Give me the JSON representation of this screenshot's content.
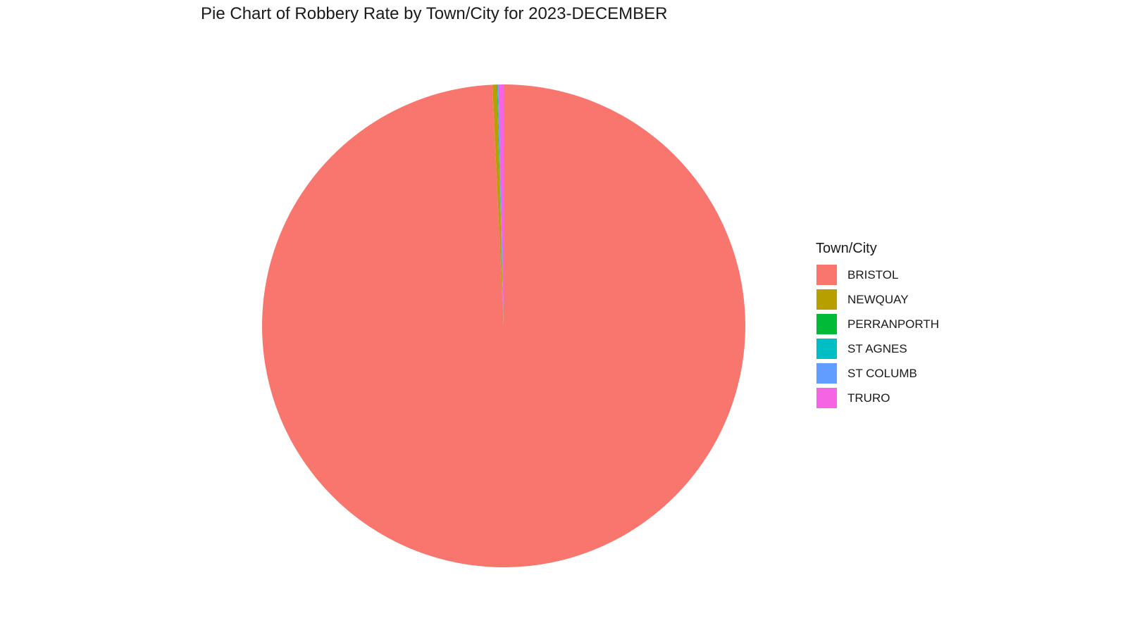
{
  "chart_data": {
    "type": "pie",
    "title": "Pie Chart of Robbery Rate by Town/City for 2023-DECEMBER",
    "legend_title": "Town/City",
    "legend_position": "right",
    "categories": [
      "BRISTOL",
      "NEWQUAY",
      "PERRANPORTH",
      "ST AGNES",
      "ST COLUMB",
      "TRURO"
    ],
    "values": [
      99.25,
      0.3,
      0.03,
      0.02,
      0.05,
      0.35
    ],
    "colors": [
      "#F8766D",
      "#B79F00",
      "#00BA38",
      "#00BFC4",
      "#619CFF",
      "#F564E3"
    ]
  }
}
